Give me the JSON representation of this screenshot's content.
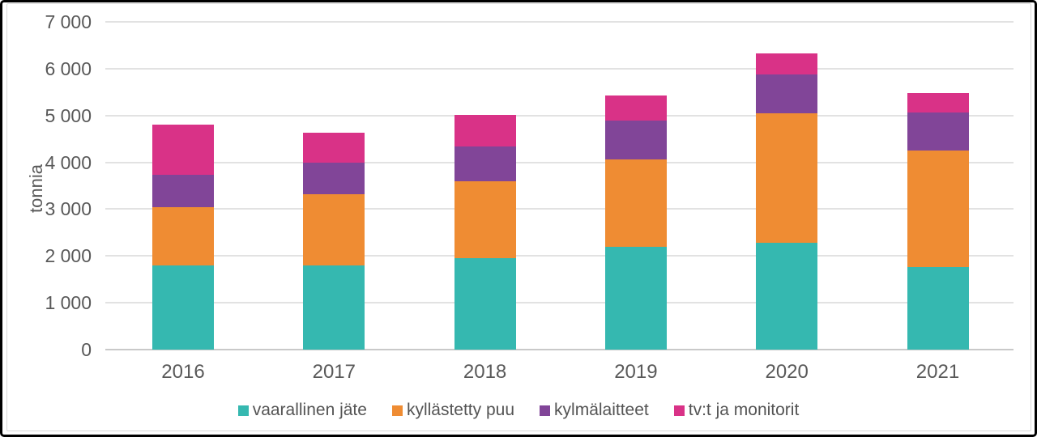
{
  "chart_data": {
    "type": "bar",
    "stacked": true,
    "title": "",
    "xlabel": "",
    "ylabel": "tonnia",
    "ylim": [
      0,
      7000
    ],
    "ytick_step": 1000,
    "ytick_labels": [
      "0",
      "1 000",
      "2 000",
      "3 000",
      "4 000",
      "5 000",
      "6 000",
      "7 000"
    ],
    "grid": true,
    "legend_position": "bottom",
    "categories": [
      "2016",
      "2017",
      "2018",
      "2019",
      "2020",
      "2021"
    ],
    "series": [
      {
        "name": "vaarallinen jäte",
        "color": "#35b8b0",
        "values": [
          1800,
          1800,
          1960,
          2190,
          2280,
          1770
        ]
      },
      {
        "name": "kyllästetty puu",
        "color": "#ef8c33",
        "values": [
          1250,
          1510,
          1640,
          1870,
          2770,
          2490
        ]
      },
      {
        "name": "kylmälaitteet",
        "color": "#814598",
        "values": [
          680,
          690,
          730,
          840,
          830,
          800
        ]
      },
      {
        "name": "tv:t ja monitorit",
        "color": "#d93287",
        "values": [
          1070,
          640,
          680,
          530,
          450,
          420
        ]
      }
    ],
    "totals": [
      4800,
      4640,
      5010,
      5430,
      6330,
      5480
    ]
  },
  "colors": {
    "gridline": "#e2e2e2",
    "axis_line": "#c9c9c9",
    "text": "#595959",
    "outer_border": "#000000",
    "inner_border": "#d9d9d9",
    "background": "#ffffff"
  }
}
